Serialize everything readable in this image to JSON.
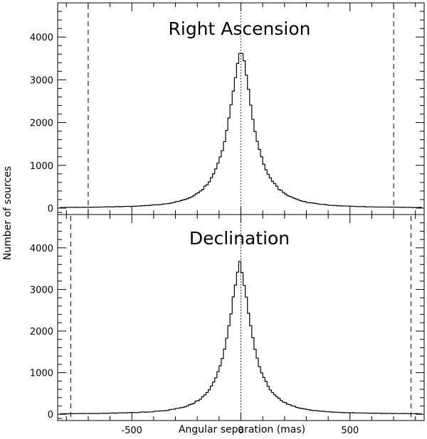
{
  "figure": {
    "xlabel": "Angular separation (mas)",
    "ylabel": "Number of sources"
  },
  "chart_data": [
    {
      "type": "histogram",
      "title": "Right Ascension",
      "xlabel": "Angular separation (mas)",
      "ylabel": "Number of sources",
      "xlim": [
        -840,
        840
      ],
      "ylim": [
        -150,
        4800
      ],
      "xticks": [
        -500,
        0,
        500
      ],
      "xtick_labels": [
        "-500",
        "0",
        "500"
      ],
      "yticks": [
        0,
        1000,
        2000,
        3000,
        4000
      ],
      "ytick_labels": [
        "0",
        "1000",
        "2000",
        "3000",
        "4000"
      ],
      "bin_width": 10,
      "peak_count": 3750,
      "peak_position": 0,
      "core_halfwidth_mas": 65,
      "vertical_lines": [
        {
          "x": -700,
          "style": "dashed"
        },
        {
          "x": 700,
          "style": "dashed"
        },
        {
          "x": 0,
          "style": "dotted"
        }
      ],
      "grid": false
    },
    {
      "type": "histogram",
      "title": "Declination",
      "xlabel": "Angular separation (mas)",
      "ylabel": "Number of sources",
      "xlim": [
        -840,
        840
      ],
      "ylim": [
        -150,
        4800
      ],
      "xticks": [
        -500,
        0,
        500
      ],
      "xtick_labels": [
        "-500",
        "0",
        "500"
      ],
      "yticks": [
        0,
        1000,
        2000,
        3000,
        4000
      ],
      "ytick_labels": [
        "0",
        "1000",
        "2000",
        "3000",
        "4000"
      ],
      "bin_width": 10,
      "peak_count": 3650,
      "peak_position": -5,
      "core_halfwidth_mas": 62,
      "vertical_lines": [
        {
          "x": -780,
          "style": "dashed"
        },
        {
          "x": 780,
          "style": "dashed"
        },
        {
          "x": 0,
          "style": "dotted"
        }
      ],
      "grid": false
    }
  ]
}
